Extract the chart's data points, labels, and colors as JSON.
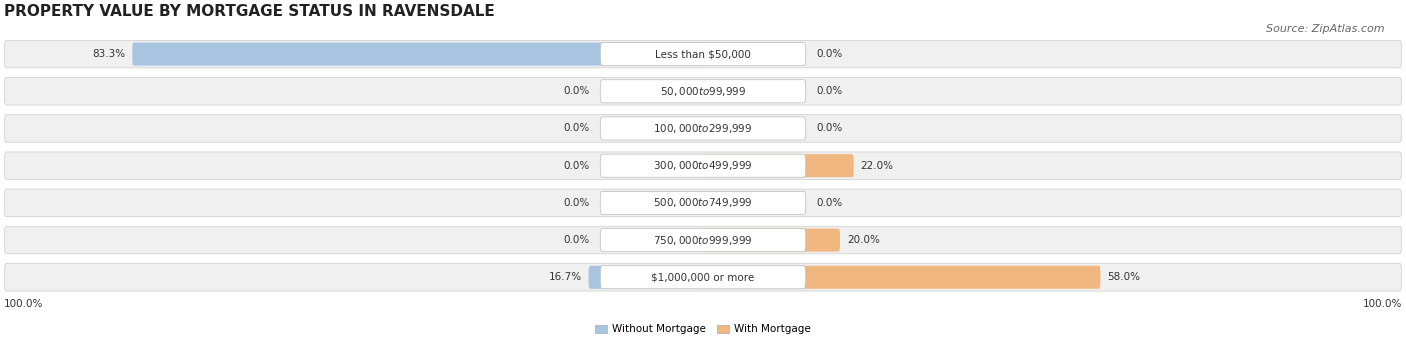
{
  "title": "PROPERTY VALUE BY MORTGAGE STATUS IN RAVENSDALE",
  "source": "Source: ZipAtlas.com",
  "categories": [
    "Less than $50,000",
    "$50,000 to $99,999",
    "$100,000 to $299,999",
    "$300,000 to $499,999",
    "$500,000 to $749,999",
    "$750,000 to $999,999",
    "$1,000,000 or more"
  ],
  "without_mortgage": [
    83.3,
    0.0,
    0.0,
    0.0,
    0.0,
    0.0,
    16.7
  ],
  "with_mortgage": [
    0.0,
    0.0,
    0.0,
    22.0,
    0.0,
    20.0,
    58.0
  ],
  "color_without": "#a8c4e0",
  "color_with": "#f0b880",
  "bar_bg_color": "#eeeeee",
  "row_bg_color": "#f0f0f0",
  "label_color": "#333333",
  "axis_label_left": "100.0%",
  "axis_label_right": "100.0%",
  "max_val": 100.0,
  "title_fontsize": 11,
  "source_fontsize": 8,
  "label_fontsize": 7.5,
  "cat_fontsize": 7.5
}
